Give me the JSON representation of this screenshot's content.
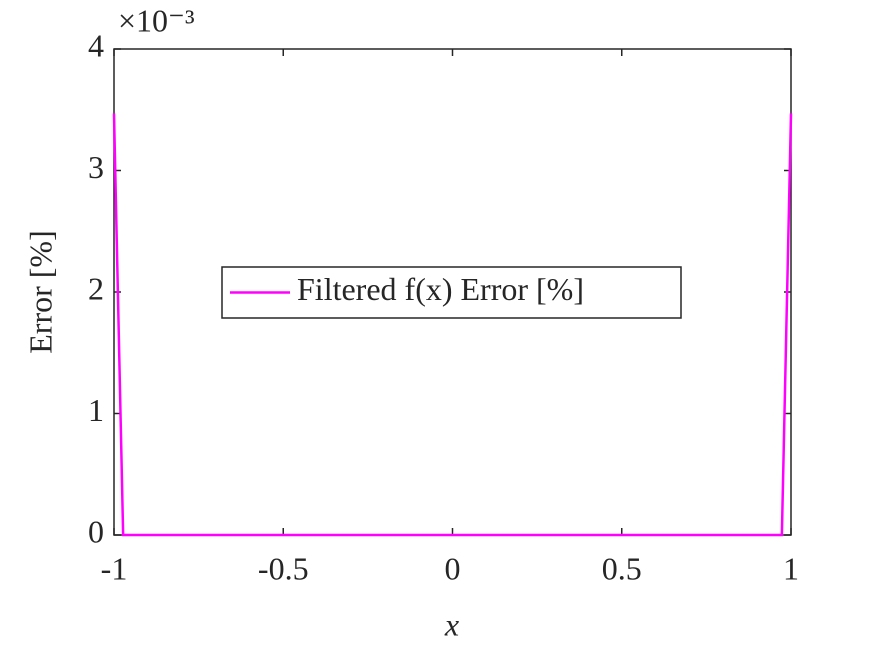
{
  "chart_data": {
    "type": "line",
    "xlabel": "x",
    "ylabel": "Error [%]",
    "y_exponent_label": "×10⁻³",
    "x": [
      -1,
      -0.973,
      0.973,
      1
    ],
    "series": [
      {
        "name": "Filtered f(x) Error [%]",
        "color": "#ff00ff",
        "values": [
          3.47,
          0,
          0,
          3.47
        ]
      }
    ],
    "xlim": [
      -1,
      1
    ],
    "xticks": [
      -1,
      -0.5,
      0,
      0.5,
      1
    ],
    "ylim": [
      0,
      4
    ],
    "yticks": [
      0,
      1,
      2,
      3,
      4
    ],
    "grid": false,
    "legend": "center"
  }
}
